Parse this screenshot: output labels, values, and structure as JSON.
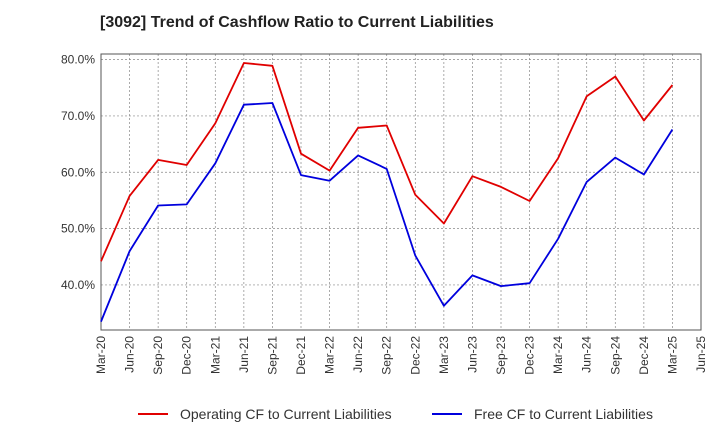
{
  "chart_data": {
    "type": "line",
    "title": "[3092]  Trend of Cashflow Ratio to Current Liabilities",
    "xlabel": "",
    "ylabel": "",
    "x": [
      "Mar-20",
      "Jun-20",
      "Sep-20",
      "Dec-20",
      "Mar-21",
      "Jun-21",
      "Sep-21",
      "Dec-21",
      "Mar-22",
      "Jun-22",
      "Sep-22",
      "Dec-22",
      "Mar-23",
      "Jun-23",
      "Sep-23",
      "Dec-23",
      "Mar-24",
      "Jun-24",
      "Sep-24",
      "Dec-24",
      "Mar-25",
      "Jun-25"
    ],
    "y_ticks": [
      40.0,
      50.0,
      60.0,
      70.0,
      80.0
    ],
    "y_tick_labels": [
      "40.0%",
      "50.0%",
      "60.0%",
      "70.0%",
      "80.0%"
    ],
    "ylim": [
      32.0,
      81.0
    ],
    "grid": true,
    "legend_position": "bottom",
    "series": [
      {
        "name": "Operating CF to Current Liabilities",
        "color": "#e00000",
        "values": [
          44.2,
          55.8,
          62.2,
          61.3,
          68.7,
          79.4,
          78.9,
          63.3,
          60.3,
          67.9,
          68.3,
          56.0,
          50.9,
          59.3,
          57.4,
          54.9,
          62.5,
          73.5,
          77.0,
          69.2,
          75.5,
          null
        ]
      },
      {
        "name": "Free CF to Current Liabilities",
        "color": "#0000dd",
        "values": [
          33.5,
          46.0,
          54.1,
          54.3,
          61.6,
          72.0,
          72.3,
          59.5,
          58.5,
          63.0,
          60.6,
          45.2,
          36.3,
          41.7,
          39.8,
          40.3,
          48.2,
          58.3,
          62.6,
          59.6,
          67.6,
          null
        ]
      }
    ]
  }
}
